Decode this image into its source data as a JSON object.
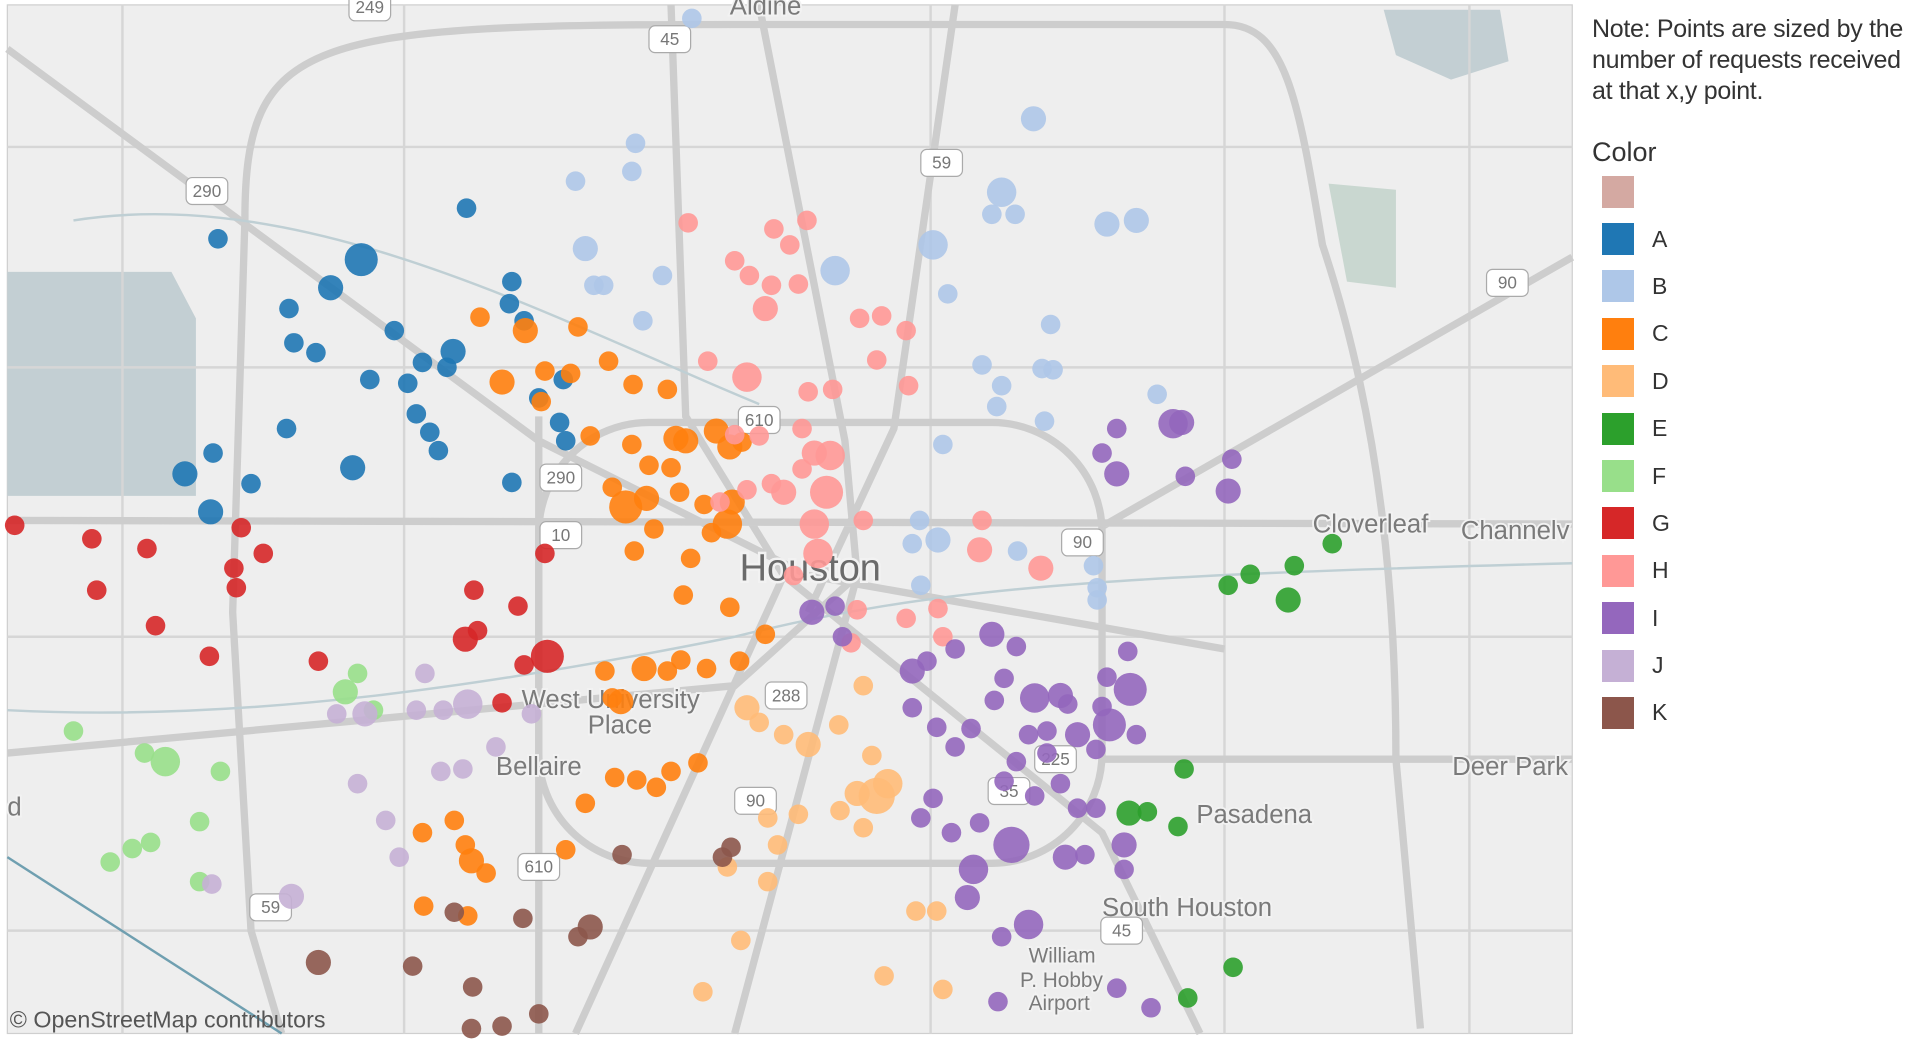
{
  "note": "Note: Points are sized by the number of requests received at that x,y point.",
  "legend_title": "Color",
  "attribution": "© OpenStreetMap contributors",
  "places": {
    "houston": "Houston",
    "west_university": [
      "West University",
      "Place"
    ],
    "bellaire": "Bellaire",
    "pasadena": "Pasadena",
    "south_houston": "South Houston",
    "hobby": [
      "William",
      "P. Hobby",
      "Airport"
    ],
    "cloverleaf": "Cloverleaf",
    "channelview": "Channelv",
    "deer_park": "Deer Park",
    "aldine": "Aldine",
    "edge": "d"
  },
  "shields": [
    "249",
    "45",
    "290",
    "59",
    "90",
    "610",
    "290",
    "10",
    "90",
    "288",
    "90",
    "610",
    "59",
    "35",
    "45",
    "225"
  ],
  "chart_data": {
    "type": "scatter",
    "series": [
      {
        "name": null,
        "color": "#d4a9a2",
        "x": [],
        "y": [],
        "size": []
      },
      {
        "name": "A",
        "color": "#1f77b4",
        "x": [
          178,
          295,
          270,
          236,
          240,
          258,
          322,
          381,
          418,
          416,
          428,
          370,
          365,
          345,
          302,
          333,
          340,
          351,
          358,
          234,
          288,
          151,
          174,
          205,
          172,
          418,
          440,
          457,
          462,
          460
        ],
        "y": [
          195,
          212,
          235,
          252,
          280,
          288,
          270,
          170,
          230,
          248,
          262,
          287,
          300,
          296,
          310,
          313,
          338,
          353,
          368,
          350,
          382,
          387,
          370,
          395,
          418,
          394,
          325,
          345,
          360,
          310
        ],
        "size": [
          1,
          4,
          2,
          1,
          1,
          1,
          1,
          1,
          1,
          1,
          1,
          2,
          1,
          1,
          1,
          1,
          1,
          1,
          1,
          1,
          2,
          2,
          1,
          1,
          2,
          1,
          1,
          1,
          1,
          1
        ]
      },
      {
        "name": "B",
        "color": "#aec7e8",
        "x": [
          565,
          519,
          516,
          470,
          478,
          485,
          493,
          541,
          525,
          682,
          762,
          844,
          818,
          810,
          829,
          904,
          928,
          774,
          802,
          858,
          851,
          860,
          818,
          814,
          853,
          945,
          770,
          751,
          766,
          745,
          893,
          896,
          896,
          831,
          752
        ],
        "y": [
          15,
          117,
          140,
          148,
          203,
          233,
          233,
          225,
          262,
          221,
          200,
          97,
          157,
          175,
          175,
          183,
          180,
          240,
          298,
          265,
          301,
          302,
          315,
          332,
          344,
          322,
          363,
          425,
          441,
          444,
          462,
          480,
          490,
          450,
          478
        ],
        "size": [
          1,
          1,
          1,
          1,
          2,
          1,
          1,
          1,
          1,
          3,
          3,
          2,
          3,
          1,
          1,
          2,
          2,
          1,
          1,
          1,
          1,
          1,
          1,
          1,
          1,
          1,
          1,
          1,
          2,
          1,
          1,
          1,
          1,
          1,
          1
        ]
      },
      {
        "name": "C",
        "color": "#ff7f0e",
        "x": [
          392,
          429,
          472,
          410,
          445,
          442,
          466,
          497,
          517,
          545,
          482,
          516,
          530,
          552,
          548,
          560,
          585,
          596,
          606,
          500,
          511,
          528,
          555,
          575,
          598,
          594,
          581,
          534,
          518,
          564,
          558,
          596,
          625,
          604,
          577,
          556,
          545,
          526,
          500,
          507,
          494,
          570,
          548,
          520,
          502,
          536,
          478,
          371,
          345,
          380,
          385,
          397,
          462,
          346,
          382
        ],
        "y": [
          259,
          270,
          267,
          312,
          303,
          328,
          305,
          295,
          314,
          318,
          356,
          363,
          380,
          358,
          382,
          360,
          352,
          365,
          361,
          398,
          414,
          407,
          402,
          412,
          410,
          428,
          435,
          432,
          450,
          456,
          486,
          496,
          518,
          540,
          546,
          539,
          548,
          546,
          570,
          573,
          548,
          623,
          630,
          637,
          635,
          643,
          656,
          670,
          680,
          690,
          703,
          713,
          694,
          740,
          748
        ],
        "size": [
          1,
          2,
          1,
          2,
          1,
          1,
          1,
          1,
          1,
          1,
          1,
          1,
          1,
          2,
          1,
          2,
          2,
          2,
          1,
          1,
          4,
          2,
          1,
          1,
          2,
          3,
          1,
          1,
          1,
          1,
          1,
          1,
          1,
          1,
          1,
          1,
          1,
          2,
          1,
          2,
          1,
          1,
          1,
          1,
          1,
          1,
          1,
          1,
          1,
          1,
          2,
          1,
          1,
          1,
          1
        ]
      },
      {
        "name": "D",
        "color": "#ffbb78",
        "x": [
          610,
          620,
          660,
          685,
          640,
          705,
          712,
          716,
          725,
          700,
          686,
          652,
          627,
          594,
          635,
          627,
          748,
          765,
          605,
          722,
          770,
          574,
          705
        ],
        "y": [
          578,
          590,
          608,
          592,
          600,
          560,
          617,
          650,
          640,
          648,
          662,
          665,
          668,
          708,
          690,
          720,
          744,
          744,
          768,
          797,
          808,
          810,
          676
        ],
        "size": [
          2,
          1,
          2,
          1,
          1,
          1,
          1,
          5,
          3,
          2,
          1,
          1,
          1,
          1,
          1,
          1,
          1,
          1,
          1,
          1,
          1,
          1,
          1
        ]
      },
      {
        "name": "E",
        "color": "#2ca02c",
        "x": [
          1088,
          1057,
          1021,
          1003,
          1052,
          967,
          922,
          937,
          962,
          1007,
          970
        ],
        "y": [
          444,
          462,
          469,
          478,
          490,
          628,
          664,
          663,
          675,
          790,
          815
        ],
        "size": [
          1,
          1,
          1,
          1,
          2,
          1,
          2,
          1,
          1,
          1,
          1
        ]
      },
      {
        "name": "F",
        "color": "#98df8a",
        "x": [
          292,
          282,
          305,
          60,
          135,
          118,
          180,
          163,
          123,
          108,
          90,
          163
        ],
        "y": [
          550,
          565,
          580,
          597,
          622,
          615,
          630,
          671,
          688,
          693,
          704,
          720
        ],
        "size": [
          1,
          2,
          1,
          1,
          3,
          1,
          1,
          1,
          1,
          1,
          1,
          1
        ]
      },
      {
        "name": "G",
        "color": "#d62728",
        "x": [
          12,
          75,
          120,
          197,
          215,
          191,
          193,
          79,
          127,
          171,
          260,
          445,
          387,
          423,
          380,
          390,
          447,
          428,
          410
        ],
        "y": [
          429,
          440,
          448,
          431,
          452,
          464,
          480,
          482,
          511,
          536,
          540,
          452,
          482,
          495,
          522,
          515,
          536,
          543,
          574
        ],
        "size": [
          1,
          1,
          1,
          1,
          1,
          1,
          1,
          1,
          1,
          1,
          1,
          1,
          1,
          1,
          2,
          1,
          4,
          1,
          1
        ]
      },
      {
        "name": "H",
        "color": "#ff9896",
        "x": [
          562,
          632,
          659,
          645,
          600,
          612,
          630,
          652,
          625,
          702,
          720,
          740,
          578,
          716,
          742,
          610,
          660,
          680,
          600,
          620,
          655,
          665,
          678,
          655,
          630,
          640,
          675,
          665,
          705,
          668,
          648,
          700,
          740,
          770,
          802,
          800,
          850,
          695,
          766,
          610,
          588
        ],
        "y": [
          182,
          187,
          180,
          200,
          213,
          225,
          233,
          232,
          252,
          260,
          258,
          270,
          295,
          294,
          315,
          308,
          320,
          318,
          355,
          356,
          350,
          370,
          372,
          383,
          395,
          402,
          402,
          428,
          425,
          452,
          470,
          498,
          505,
          520,
          425,
          449,
          464,
          525,
          497,
          400,
          410
        ],
        "size": [
          1,
          1,
          1,
          1,
          1,
          1,
          1,
          1,
          2,
          1,
          1,
          1,
          1,
          1,
          1,
          3,
          1,
          1,
          1,
          1,
          1,
          2,
          3,
          1,
          1,
          2,
          4,
          3,
          1,
          3,
          1,
          1,
          1,
          1,
          1,
          2,
          2,
          1,
          1,
          1,
          1
        ]
      },
      {
        "name": "I",
        "color": "#9467bd",
        "x": [
          912,
          958,
          965,
          900,
          912,
          1006,
          1003,
          968,
          663,
          688,
          682,
          810,
          830,
          780,
          745,
          757,
          820,
          845,
          866,
          812,
          745,
          765,
          780,
          793,
          923,
          921,
          904,
          906,
          880,
          895,
          855,
          830,
          820,
          845,
          866,
          880,
          872,
          900,
          928,
          762,
          752,
          777,
          800,
          826,
          795,
          870,
          886,
          918,
          918,
          790,
          840,
          818,
          912,
          940,
          815,
          895,
          840,
          855
        ],
        "y": [
          350,
          346,
          345,
          370,
          387,
          375,
          401,
          389,
          500,
          520,
          495,
          518,
          528,
          530,
          548,
          540,
          554,
          570,
          568,
          572,
          578,
          594,
          610,
          595,
          563,
          532,
          553,
          592,
          600,
          612,
          615,
          622,
          638,
          650,
          640,
          660,
          575,
          577,
          600,
          652,
          668,
          680,
          672,
          690,
          710,
          700,
          698,
          690,
          710,
          733,
          755,
          765,
          807,
          823,
          818,
          660,
          600,
          597
        ],
        "size": [
          1,
          3,
          2,
          1,
          2,
          1,
          2,
          1,
          2,
          1,
          1,
          2,
          1,
          1,
          2,
          1,
          1,
          3,
          2,
          1,
          1,
          1,
          1,
          1,
          4,
          1,
          1,
          4,
          2,
          1,
          1,
          1,
          1,
          1,
          1,
          1,
          1,
          1,
          1,
          1,
          1,
          1,
          1,
          5,
          3,
          2,
          1,
          2,
          1,
          2,
          3,
          1,
          1,
          1,
          1,
          1,
          1,
          1
        ]
      },
      {
        "name": "J",
        "color": "#c5b0d5",
        "x": [
          347,
          340,
          382,
          362,
          298,
          275,
          405,
          360,
          378,
          292,
          315,
          326,
          238,
          173,
          434
        ],
        "y": [
          550,
          580,
          575,
          580,
          583,
          583,
          610,
          630,
          628,
          640,
          670,
          700,
          732,
          722,
          583
        ],
        "size": [
          1,
          1,
          3,
          1,
          2,
          1,
          1,
          1,
          1,
          1,
          1,
          1,
          2,
          1,
          1
        ]
      },
      {
        "name": "K",
        "color": "#8c564b",
        "x": [
          508,
          597,
          590,
          371,
          427,
          482,
          472,
          260,
          337,
          386,
          440,
          410,
          385
        ],
        "y": [
          698,
          692,
          700,
          745,
          750,
          757,
          765,
          786,
          789,
          806,
          828,
          838,
          840
        ],
        "size": [
          1,
          1,
          1,
          1,
          1,
          2,
          1,
          2,
          1,
          1,
          1,
          1,
          1
        ]
      }
    ]
  }
}
